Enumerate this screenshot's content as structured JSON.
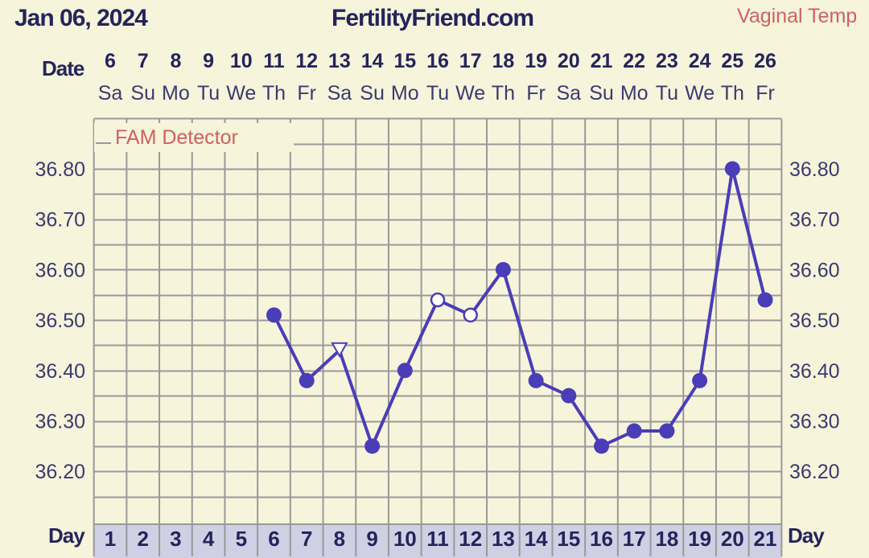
{
  "header": {
    "date": "Jan 06, 2024",
    "site": "FertilityFriend.com",
    "temp_type": "Vaginal Temp"
  },
  "labels": {
    "date_row": "Date",
    "day_row": "Day",
    "fam_detector": "FAM Detector"
  },
  "colors": {
    "background": "#f7f4dc",
    "grid": "#999999",
    "line": "#4a3db8",
    "text": "#24245c",
    "accent": "#d06060",
    "day_cell": "#cfd0e4"
  },
  "chart_data": {
    "type": "line",
    "title": "",
    "x": [
      1,
      2,
      3,
      4,
      5,
      6,
      7,
      8,
      9,
      10,
      11,
      12,
      13,
      14,
      15,
      16,
      17,
      18,
      19,
      20,
      21
    ],
    "dates": [
      "6",
      "7",
      "8",
      "9",
      "10",
      "11",
      "12",
      "13",
      "14",
      "15",
      "16",
      "17",
      "18",
      "19",
      "20",
      "21",
      "22",
      "23",
      "24",
      "25",
      "26"
    ],
    "weekdays": [
      "Sa",
      "Su",
      "Mo",
      "Tu",
      "We",
      "Th",
      "Fr",
      "Sa",
      "Su",
      "Mo",
      "Tu",
      "We",
      "Th",
      "Fr",
      "Sa",
      "Su",
      "Mo",
      "Tu",
      "We",
      "Th",
      "Fr"
    ],
    "ytick_labels": [
      "36.80",
      "36.70",
      "36.60",
      "36.50",
      "36.40",
      "36.30",
      "36.20"
    ],
    "ylim": [
      36.1,
      36.9
    ],
    "grid": true,
    "series": [
      {
        "values": [
          null,
          null,
          null,
          null,
          null,
          36.51,
          36.38,
          36.44,
          36.25,
          36.4,
          36.54,
          36.51,
          36.6,
          36.38,
          36.35,
          36.25,
          36.28,
          36.28,
          36.38,
          36.8,
          36.54
        ],
        "markers": [
          null,
          null,
          null,
          null,
          null,
          "filled",
          "filled",
          "open-triangle",
          "filled",
          "filled",
          "open",
          "open",
          "filled",
          "filled",
          "filled",
          "filled",
          "filled",
          "filled",
          "filled",
          "filled",
          "filled"
        ]
      }
    ]
  }
}
